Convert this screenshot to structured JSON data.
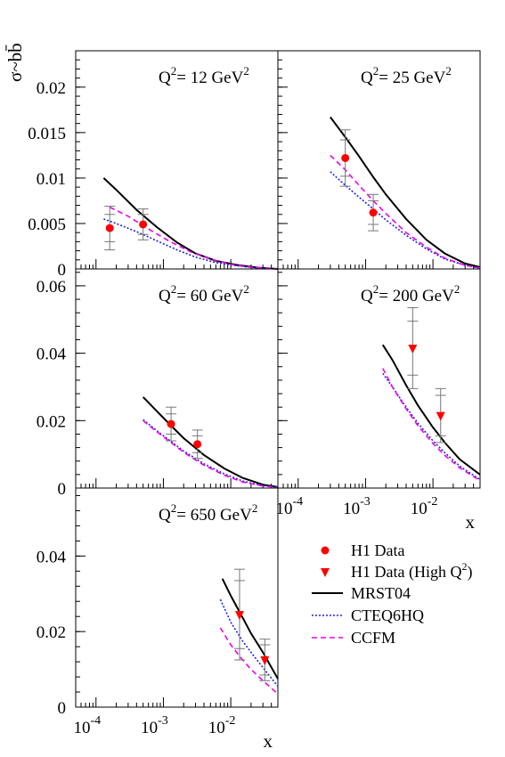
{
  "chart_data": {
    "type": "line",
    "ylabel": "σ~bb̄",
    "xlabel": "x",
    "x_scale": "log",
    "xlim": [
      5e-05,
      0.05
    ],
    "x_ticks": [
      {
        "value": 0.0001,
        "base": "10",
        "exp": "-4"
      },
      {
        "value": 0.001,
        "base": "10",
        "exp": "-3"
      },
      {
        "value": 0.01,
        "base": "10",
        "exp": "-2"
      }
    ],
    "series_styles": [
      {
        "id": "h1",
        "name": "H1 Data",
        "marker": "circle",
        "color": "#ff0000"
      },
      {
        "id": "h1hq",
        "name": "H1 Data (High Q",
        "name_sup": "2",
        "name_tail": ")",
        "marker": "triangle-down",
        "color": "#ff0000"
      },
      {
        "id": "mrst",
        "name": "MRST04",
        "line": "solid",
        "color": "#000000"
      },
      {
        "id": "cteq",
        "name": "CTEQ6HQ",
        "line": "dotted",
        "color": "#2222dd"
      },
      {
        "id": "ccfm",
        "name": "CCFM",
        "line": "dashed",
        "color": "#ee00ee"
      }
    ],
    "panels": [
      {
        "id": "q12",
        "q2_prefix": "Q",
        "q2_exp": "2",
        "q2_value": "= 12 GeV",
        "q2_unit_exp": "2",
        "ylim": [
          0,
          0.024
        ],
        "y_ticks": [
          {
            "v": 0,
            "label": "0"
          },
          {
            "v": 0.005,
            "label": "0.005"
          },
          {
            "v": 0.01,
            "label": "0.01"
          },
          {
            "v": 0.015,
            "label": "0.015"
          },
          {
            "v": 0.02,
            "label": "0.02"
          }
        ],
        "show_x_labels": false,
        "curves": {
          "mrst": [
            [
              0.00013,
              0.01
            ],
            [
              0.0002,
              0.0087
            ],
            [
              0.0004,
              0.0065
            ],
            [
              0.0008,
              0.0046
            ],
            [
              0.0016,
              0.0029
            ],
            [
              0.003,
              0.0017
            ],
            [
              0.006,
              0.0009
            ],
            [
              0.012,
              0.00045
            ],
            [
              0.025,
              0.00015
            ],
            [
              0.05,
              0.0
            ]
          ],
          "cteq": [
            [
              0.00013,
              0.0055
            ],
            [
              0.0002,
              0.005
            ],
            [
              0.0004,
              0.0041
            ],
            [
              0.0008,
              0.0031
            ],
            [
              0.0016,
              0.0021
            ],
            [
              0.003,
              0.0013
            ],
            [
              0.006,
              0.0007
            ],
            [
              0.012,
              0.00035
            ],
            [
              0.025,
              0.0001
            ],
            [
              0.05,
              0.0
            ]
          ],
          "ccfm": [
            [
              0.00016,
              0.0068
            ],
            [
              0.0003,
              0.0058
            ],
            [
              0.0006,
              0.0044
            ],
            [
              0.0012,
              0.0031
            ],
            [
              0.0025,
              0.0019
            ],
            [
              0.005,
              0.0011
            ],
            [
              0.01,
              0.0005
            ],
            [
              0.02,
              0.0002
            ],
            [
              0.05,
              0.0
            ]
          ]
        },
        "points": [
          {
            "series": "h1",
            "x": 0.00016,
            "y": 0.0045,
            "err_stat": 0.0015,
            "err_tot": 0.0024
          },
          {
            "series": "h1",
            "x": 0.0005,
            "y": 0.0049,
            "err_stat": 0.0011,
            "err_tot": 0.0017
          }
        ]
      },
      {
        "id": "q25",
        "q2_prefix": "Q",
        "q2_exp": "2",
        "q2_value": "= 25 GeV",
        "q2_unit_exp": "2",
        "ylim": [
          0,
          0.024
        ],
        "y_ticks": [
          {
            "v": 0,
            "label": ""
          },
          {
            "v": 0.005,
            "label": ""
          },
          {
            "v": 0.01,
            "label": ""
          },
          {
            "v": 0.015,
            "label": ""
          },
          {
            "v": 0.02,
            "label": ""
          }
        ],
        "show_x_labels": false,
        "curves": {
          "mrst": [
            [
              0.0003,
              0.0167
            ],
            [
              0.0005,
              0.0145
            ],
            [
              0.0008,
              0.0124
            ],
            [
              0.0013,
              0.0101
            ],
            [
              0.002,
              0.0082
            ],
            [
              0.004,
              0.0055
            ],
            [
              0.008,
              0.0032
            ],
            [
              0.015,
              0.0017
            ],
            [
              0.03,
              0.0006
            ],
            [
              0.05,
              0.0002
            ]
          ],
          "cteq": [
            [
              0.0003,
              0.0107
            ],
            [
              0.0005,
              0.0092
            ],
            [
              0.0008,
              0.0079
            ],
            [
              0.0013,
              0.0066
            ],
            [
              0.002,
              0.0054
            ],
            [
              0.004,
              0.0037
            ],
            [
              0.008,
              0.0022
            ],
            [
              0.015,
              0.0011
            ],
            [
              0.03,
              0.0004
            ],
            [
              0.05,
              0.0001
            ]
          ],
          "ccfm": [
            [
              0.0003,
              0.0125
            ],
            [
              0.0005,
              0.0109
            ],
            [
              0.0008,
              0.0092
            ],
            [
              0.0013,
              0.0075
            ],
            [
              0.002,
              0.0061
            ],
            [
              0.004,
              0.004
            ],
            [
              0.008,
              0.0024
            ],
            [
              0.015,
              0.0012
            ],
            [
              0.03,
              0.0004
            ],
            [
              0.05,
              0.0001
            ]
          ]
        },
        "points": [
          {
            "series": "h1",
            "x": 0.0005,
            "y": 0.0122,
            "err_stat": 0.002,
            "err_tot": 0.0031
          },
          {
            "series": "h1",
            "x": 0.0013,
            "y": 0.0062,
            "err_stat": 0.0013,
            "err_tot": 0.002
          }
        ]
      },
      {
        "id": "q60",
        "q2_prefix": "Q",
        "q2_exp": "2",
        "q2_value": "= 60 GeV",
        "q2_unit_exp": "2",
        "ylim": [
          0,
          0.065
        ],
        "y_ticks": [
          {
            "v": 0,
            "label": "0"
          },
          {
            "v": 0.02,
            "label": "0.02"
          },
          {
            "v": 0.04,
            "label": "0.04"
          },
          {
            "v": 0.06,
            "label": "0.06"
          }
        ],
        "show_x_labels": false,
        "curves": {
          "mrst": [
            [
              0.0005,
              0.027
            ],
            [
              0.0008,
              0.0228
            ],
            [
              0.0013,
              0.0185
            ],
            [
              0.002,
              0.0148
            ],
            [
              0.004,
              0.0098
            ],
            [
              0.008,
              0.0058
            ],
            [
              0.015,
              0.003
            ],
            [
              0.03,
              0.001
            ],
            [
              0.05,
              0.0003
            ]
          ],
          "cteq": [
            [
              0.0005,
              0.0203
            ],
            [
              0.0008,
              0.017
            ],
            [
              0.0013,
              0.0138
            ],
            [
              0.002,
              0.011
            ],
            [
              0.004,
              0.0072
            ],
            [
              0.008,
              0.0042
            ],
            [
              0.015,
              0.0021
            ],
            [
              0.03,
              0.0007
            ],
            [
              0.05,
              0.0002
            ]
          ],
          "ccfm": [
            [
              0.0005,
              0.02
            ],
            [
              0.0008,
              0.0167
            ],
            [
              0.0013,
              0.0135
            ],
            [
              0.002,
              0.0106
            ],
            [
              0.004,
              0.0068
            ],
            [
              0.008,
              0.0038
            ],
            [
              0.015,
              0.0018
            ],
            [
              0.03,
              0.0006
            ],
            [
              0.05,
              0.0002
            ]
          ]
        },
        "points": [
          {
            "series": "h1",
            "x": 0.0013,
            "y": 0.019,
            "err_stat": 0.003,
            "err_tot": 0.005
          },
          {
            "series": "h1",
            "x": 0.0032,
            "y": 0.013,
            "err_stat": 0.0025,
            "err_tot": 0.0042
          }
        ]
      },
      {
        "id": "q200",
        "q2_prefix": "Q",
        "q2_exp": "2",
        "q2_value": "= 200 GeV",
        "q2_unit_exp": "2",
        "ylim": [
          0,
          0.065
        ],
        "y_ticks": [
          {
            "v": 0,
            "label": ""
          },
          {
            "v": 0.02,
            "label": ""
          },
          {
            "v": 0.04,
            "label": ""
          },
          {
            "v": 0.06,
            "label": ""
          }
        ],
        "show_x_labels": true,
        "curves": {
          "mrst": [
            [
              0.0018,
              0.0425
            ],
            [
              0.0025,
              0.038
            ],
            [
              0.004,
              0.0305
            ],
            [
              0.006,
              0.0245
            ],
            [
              0.01,
              0.018
            ],
            [
              0.015,
              0.0135
            ],
            [
              0.025,
              0.0085
            ],
            [
              0.05,
              0.004
            ]
          ],
          "cteq": [
            [
              0.0018,
              0.034
            ],
            [
              0.0025,
              0.03
            ],
            [
              0.004,
              0.024
            ],
            [
              0.006,
              0.0192
            ],
            [
              0.01,
              0.014
            ],
            [
              0.015,
              0.0105
            ],
            [
              0.025,
              0.0065
            ],
            [
              0.05,
              0.0025
            ]
          ],
          "ccfm": [
            [
              0.0018,
              0.0355
            ],
            [
              0.0025,
              0.03
            ],
            [
              0.004,
              0.0235
            ],
            [
              0.006,
              0.0185
            ],
            [
              0.01,
              0.0132
            ],
            [
              0.015,
              0.0097
            ],
            [
              0.025,
              0.006
            ],
            [
              0.05,
              0.0022
            ]
          ]
        },
        "points": [
          {
            "series": "h1hq",
            "x": 0.005,
            "y": 0.0415,
            "err_stat": 0.008,
            "err_tot": 0.012
          },
          {
            "series": "h1hq",
            "x": 0.013,
            "y": 0.0215,
            "err_stat": 0.006,
            "err_tot": 0.008
          }
        ]
      },
      {
        "id": "q650",
        "q2_prefix": "Q",
        "q2_exp": "2",
        "q2_value": "= 650 GeV",
        "q2_unit_exp": "2",
        "ylim": [
          0,
          0.058
        ],
        "y_ticks": [
          {
            "v": 0,
            "label": "0"
          },
          {
            "v": 0.02,
            "label": "0.02"
          },
          {
            "v": 0.04,
            "label": "0.04"
          }
        ],
        "show_x_labels": true,
        "curves": {
          "mrst": [
            [
              0.0075,
              0.034
            ],
            [
              0.01,
              0.0295
            ],
            [
              0.015,
              0.0237
            ],
            [
              0.02,
              0.0195
            ],
            [
              0.03,
              0.0145
            ],
            [
              0.05,
              0.0075
            ]
          ],
          "cteq": [
            [
              0.007,
              0.0285
            ],
            [
              0.01,
              0.0225
            ],
            [
              0.015,
              0.0175
            ],
            [
              0.02,
              0.0145
            ],
            [
              0.03,
              0.0105
            ],
            [
              0.05,
              0.0055
            ]
          ],
          "ccfm": [
            [
              0.007,
              0.021
            ],
            [
              0.01,
              0.0165
            ],
            [
              0.015,
              0.0125
            ],
            [
              0.02,
              0.01
            ],
            [
              0.03,
              0.007
            ],
            [
              0.05,
              0.0035
            ]
          ]
        },
        "points": [
          {
            "series": "h1hq",
            "x": 0.0135,
            "y": 0.0245,
            "err_stat": 0.009,
            "err_tot": 0.012
          },
          {
            "series": "h1hq",
            "x": 0.032,
            "y": 0.0125,
            "err_stat": 0.004,
            "err_tot": 0.0055
          }
        ]
      }
    ]
  }
}
